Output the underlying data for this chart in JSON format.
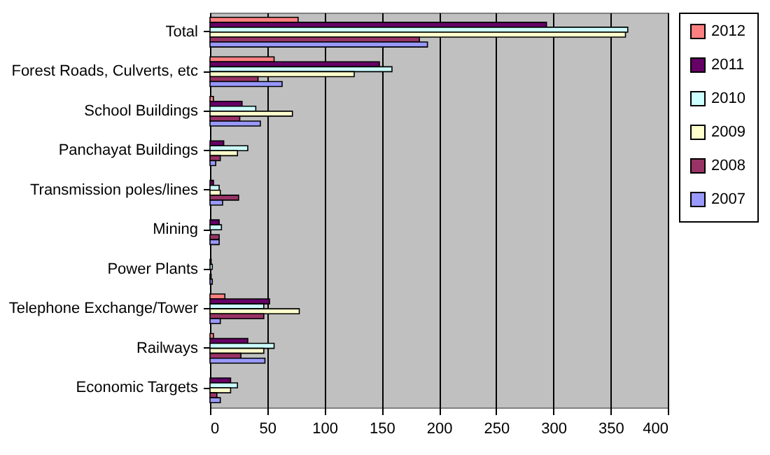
{
  "chart_data": {
    "type": "bar",
    "orientation": "horizontal",
    "categories": [
      "Total",
      "Forest Roads, Culverts, etc",
      "School Buildings",
      "Panchayat Buildings",
      "Transmission poles/lines",
      "Mining",
      "Power Plants",
      "Telephone Exchange/Tower",
      "Railways",
      "Economic Targets"
    ],
    "series": [
      {
        "name": "2012",
        "color": "#ff8080",
        "values": [
          77,
          56,
          3,
          null,
          null,
          null,
          null,
          13,
          3,
          null
        ]
      },
      {
        "name": "2011",
        "color": "#660066",
        "values": [
          294,
          148,
          28,
          12,
          3,
          8,
          1,
          52,
          33,
          18
        ]
      },
      {
        "name": "2010",
        "color": "#ccffff",
        "values": [
          365,
          159,
          40,
          33,
          8,
          10,
          2,
          47,
          56,
          24
        ]
      },
      {
        "name": "2009",
        "color": "#ffffcc",
        "values": [
          363,
          126,
          72,
          24,
          9,
          null,
          null,
          78,
          47,
          18
        ]
      },
      {
        "name": "2008",
        "color": "#993366",
        "values": [
          183,
          42,
          26,
          9,
          25,
          8,
          1,
          47,
          27,
          6
        ]
      },
      {
        "name": "2007",
        "color": "#9999ff",
        "values": [
          190,
          63,
          44,
          5,
          11,
          8,
          2,
          9,
          48,
          9
        ]
      }
    ],
    "xlim": [
      0,
      400
    ],
    "xticks": [
      0,
      50,
      100,
      150,
      200,
      250,
      300,
      350,
      400
    ],
    "grid": "x",
    "legend": "right"
  }
}
